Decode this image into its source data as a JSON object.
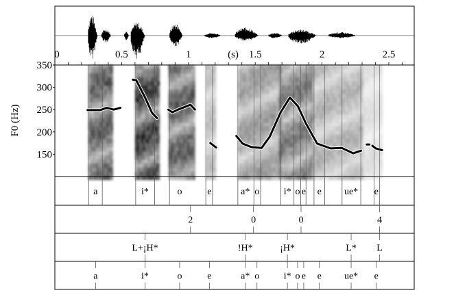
{
  "chart_data": {
    "type": "line",
    "xlabel": "(s)",
    "ylabel": "F0 (Hz)",
    "xlim": [
      0,
      2.69
    ],
    "ylim": [
      100,
      350
    ],
    "x_ticks": [
      {
        "v": 0,
        "label": "0"
      },
      {
        "v": 0.5,
        "label": "0.5"
      },
      {
        "v": 1,
        "label": "1"
      },
      {
        "v": 1.5,
        "label": "1.5"
      },
      {
        "v": 2,
        "label": "2"
      },
      {
        "v": 2.5,
        "label": "2.5"
      }
    ],
    "y_ticks": [
      {
        "v": 350,
        "label": "350"
      },
      {
        "v": 300,
        "label": "300"
      },
      {
        "v": 250,
        "label": "250"
      },
      {
        "v": 200,
        "label": "200"
      },
      {
        "v": 150,
        "label": "150"
      }
    ],
    "f0_segments": [
      [
        [
          0.245,
          249
        ],
        [
          0.339,
          249
        ],
        [
          0.389,
          254
        ],
        [
          0.44,
          250
        ],
        [
          0.491,
          254
        ]
      ],
      [
        [
          0.584,
          317
        ],
        [
          0.609,
          316
        ],
        [
          0.677,
          276
        ],
        [
          0.727,
          243
        ],
        [
          0.765,
          231
        ]
      ],
      [
        [
          0.849,
          250
        ],
        [
          0.88,
          244
        ],
        [
          0.922,
          250
        ],
        [
          0.973,
          256
        ],
        [
          1.015,
          261
        ],
        [
          1.049,
          250
        ]
      ],
      [
        [
          1.164,
          175
        ],
        [
          1.207,
          165
        ]
      ],
      [
        [
          1.359,
          191
        ],
        [
          1.405,
          174
        ],
        [
          1.472,
          166
        ],
        [
          1.548,
          164
        ],
        [
          1.608,
          189
        ],
        [
          1.692,
          245
        ],
        [
          1.76,
          277
        ],
        [
          1.819,
          258
        ],
        [
          1.878,
          220
        ],
        [
          1.963,
          174
        ],
        [
          2.064,
          163
        ],
        [
          2.149,
          164
        ],
        [
          2.234,
          152
        ],
        [
          2.293,
          158
        ]
      ],
      [
        [
          2.335,
          172
        ],
        [
          2.355,
          172
        ]
      ],
      [
        [
          2.377,
          169
        ],
        [
          2.403,
          163
        ],
        [
          2.45,
          159
        ]
      ]
    ],
    "spectrogram_voiced_regions": [
      {
        "start": 0.25,
        "end": 0.42,
        "darkness": 0.75
      },
      {
        "start": 0.6,
        "end": 0.77,
        "darkness": 0.9
      },
      {
        "start": 0.85,
        "end": 1.05,
        "darkness": 0.75
      },
      {
        "start": 1.13,
        "end": 1.2,
        "darkness": 0.3
      },
      {
        "start": 1.37,
        "end": 1.68,
        "darkness": 0.45
      },
      {
        "start": 1.68,
        "end": 1.92,
        "darkness": 0.6
      },
      {
        "start": 1.92,
        "end": 2.3,
        "darkness": 0.35
      },
      {
        "start": 2.3,
        "end": 2.45,
        "darkness": 0.15
      }
    ],
    "tiers": [
      {
        "type": "interval",
        "boundaries": [
          0.254,
          0.355,
          0.605,
          0.747,
          0.858,
          1.13,
          1.18,
          1.37,
          1.49,
          1.54,
          1.69,
          1.79,
          1.84,
          1.88,
          1.94,
          2.02,
          2.15,
          2.29,
          2.39,
          2.43
        ],
        "labels": [
          {
            "t": 0.305,
            "text": "a"
          },
          {
            "t": 0.675,
            "text": "i*"
          },
          {
            "t": 0.934,
            "text": "o"
          },
          {
            "t": 1.157,
            "text": "e"
          },
          {
            "t": 1.426,
            "text": "a*"
          },
          {
            "t": 1.513,
            "text": "o"
          },
          {
            "t": 1.741,
            "text": "i*"
          },
          {
            "t": 1.817,
            "text": "o"
          },
          {
            "t": 1.863,
            "text": "e"
          },
          {
            "t": 1.98,
            "text": "e"
          },
          {
            "t": 2.218,
            "text": "ue*"
          },
          {
            "t": 2.406,
            "text": "e"
          }
        ]
      },
      {
        "type": "point",
        "points": [
          {
            "t": 1.015,
            "text": "2"
          },
          {
            "t": 1.487,
            "text": "0"
          },
          {
            "t": 1.843,
            "text": "0"
          },
          {
            "t": 2.431,
            "text": "4"
          }
        ]
      },
      {
        "type": "point",
        "points": [
          {
            "t": 0.675,
            "text": "L+¡H*"
          },
          {
            "t": 1.426,
            "text": "!H*"
          },
          {
            "t": 1.741,
            "text": "¡H*"
          },
          {
            "t": 2.218,
            "text": "L*"
          },
          {
            "t": 2.431,
            "text": "L"
          }
        ]
      },
      {
        "type": "point",
        "points": [
          {
            "t": 0.305,
            "text": "a"
          },
          {
            "t": 0.675,
            "text": "i*"
          },
          {
            "t": 0.934,
            "text": "o"
          },
          {
            "t": 1.157,
            "text": "e"
          },
          {
            "t": 1.426,
            "text": "a*"
          },
          {
            "t": 1.513,
            "text": "o"
          },
          {
            "t": 1.741,
            "text": "i*"
          },
          {
            "t": 1.817,
            "text": "o"
          },
          {
            "t": 1.863,
            "text": "e"
          },
          {
            "t": 1.98,
            "text": "e"
          },
          {
            "t": 2.218,
            "text": "ue*"
          },
          {
            "t": 2.406,
            "text": "e"
          }
        ]
      }
    ]
  }
}
